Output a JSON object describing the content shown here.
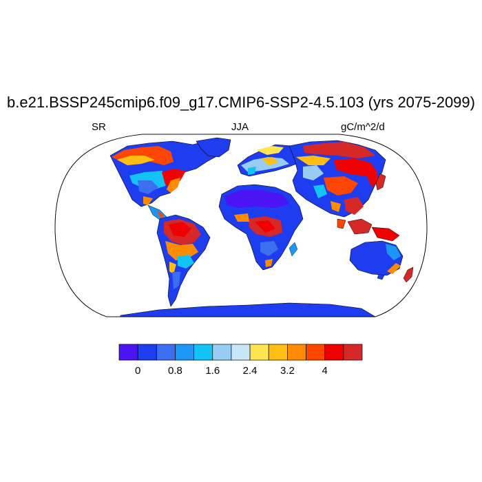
{
  "title": "b.e21.BSSP245cmip6.f09_g17.CMIP6-SSP2-4.5.103 (yrs 2075-2099)",
  "left_label": "SR",
  "center_label": "JJA",
  "right_label": "gC/m^2/d",
  "colorbar": {
    "colors": [
      "#4a14f5",
      "#1e3cf0",
      "#3c6ef0",
      "#1e96f5",
      "#14c3f5",
      "#96cdf0",
      "#c8e6fa",
      "#ffe650",
      "#ffbe14",
      "#ff8c00",
      "#ff4600",
      "#f00000",
      "#d72828"
    ],
    "tick_labels": [
      "0",
      "0.8",
      "1.6",
      "2.4",
      "3.2",
      "4"
    ],
    "tick_values": [
      0,
      0.8,
      1.6,
      2.4,
      3.2,
      4
    ],
    "levels": [
      0,
      0.4,
      0.8,
      1.2,
      1.6,
      2.0,
      2.4,
      2.8,
      3.2,
      3.6,
      4.0,
      4.4
    ]
  },
  "map": {
    "projection": "Robinson",
    "ocean_color": "#ffffff",
    "land_base_color": "#1e3cf0",
    "coastline_color": "#000000"
  }
}
